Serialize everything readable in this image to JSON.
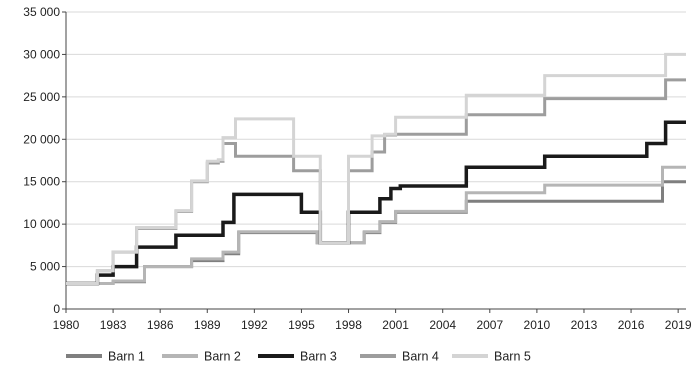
{
  "chart_data": {
    "type": "line",
    "title": "",
    "xlabel": "",
    "ylabel": "",
    "xlim": [
      1980,
      2019.5
    ],
    "ylim": [
      0,
      35000
    ],
    "x_ticks": [
      1980,
      1983,
      1986,
      1989,
      1992,
      1995,
      1998,
      2001,
      2004,
      2007,
      2010,
      2013,
      2016,
      2019
    ],
    "x_tick_labels": [
      "1980",
      "1983",
      "1986",
      "1989",
      "1992",
      "1995",
      "1998",
      "2001",
      "2004",
      "2007",
      "2010",
      "2013",
      "2016",
      "2019"
    ],
    "y_ticks": [
      0,
      5000,
      10000,
      15000,
      20000,
      25000,
      30000,
      35000
    ],
    "y_tick_labels": [
      "0",
      "5 000",
      "10 000",
      "15 000",
      "20 000",
      "25 000",
      "30 000",
      "35 000"
    ],
    "grid": "horizontal",
    "legend_position": "bottom",
    "step": true,
    "series": [
      {
        "name": "Barn 1",
        "color": "#7f7f7f",
        "width": 3,
        "x": [
          1980,
          1983,
          1985,
          1988,
          1990,
          1991,
          1996,
          1999,
          2000,
          2001,
          2005.5,
          2018,
          2019.5
        ],
        "values": [
          3000,
          3200,
          5000,
          5700,
          6500,
          9000,
          7800,
          9000,
          10200,
          11400,
          12700,
          15000,
          15000
        ]
      },
      {
        "name": "Barn 2",
        "color": "#b5b5b5",
        "width": 3,
        "x": [
          1980,
          1983,
          1985,
          1988,
          1990,
          1991,
          1996,
          1999,
          2000,
          2001,
          2005.5,
          2010,
          2010.5,
          2018,
          2019.5
        ],
        "values": [
          3000,
          3300,
          5000,
          5900,
          6700,
          9100,
          7800,
          9100,
          10300,
          11500,
          13700,
          13700,
          14600,
          16700,
          16700
        ]
      },
      {
        "name": "Barn 3",
        "color": "#1a1a1a",
        "width": 3.5,
        "x": [
          1980,
          1982,
          1983,
          1984.5,
          1987,
          1990,
          1990.7,
          1995,
          1995.7,
          1996.2,
          1998,
          2000,
          2000.7,
          2001.3,
          2005.5,
          2010.5,
          2017,
          2018.2,
          2019.5
        ],
        "values": [
          3000,
          4000,
          5000,
          7300,
          8700,
          10200,
          13500,
          11400,
          11400,
          7800,
          11400,
          13000,
          14200,
          14500,
          16700,
          18000,
          19500,
          22000,
          22000
        ]
      },
      {
        "name": "Barn 4",
        "color": "#9d9d9d",
        "width": 3,
        "x": [
          1980,
          1982,
          1983,
          1984.5,
          1987,
          1988,
          1989,
          1989.7,
          1990,
          1990.8,
          1994.5,
          1995.2,
          1996.2,
          1998,
          1999.5,
          2000.3,
          2001,
          2005.5,
          2010.5,
          2018.2,
          2019.5
        ],
        "values": [
          3000,
          4500,
          6700,
          9500,
          11500,
          15000,
          17200,
          17400,
          19500,
          18000,
          16300,
          16300,
          7800,
          16300,
          18500,
          20500,
          20600,
          22900,
          24800,
          27000,
          27000
        ]
      },
      {
        "name": "Barn 5",
        "color": "#d4d4d4",
        "width": 3,
        "x": [
          1980,
          1982,
          1983,
          1984.5,
          1987,
          1988,
          1989,
          1989.7,
          1990,
          1990.8,
          1994.5,
          1995.2,
          1996.2,
          1998,
          1999.5,
          2000.3,
          2001,
          2005.5,
          2010.5,
          2018.2,
          2019.5
        ],
        "values": [
          3000,
          4500,
          6700,
          9600,
          11600,
          15100,
          17400,
          17600,
          20200,
          22400,
          18000,
          18000,
          7800,
          18000,
          20400,
          20600,
          22600,
          25200,
          27500,
          30000,
          30000
        ]
      }
    ]
  }
}
